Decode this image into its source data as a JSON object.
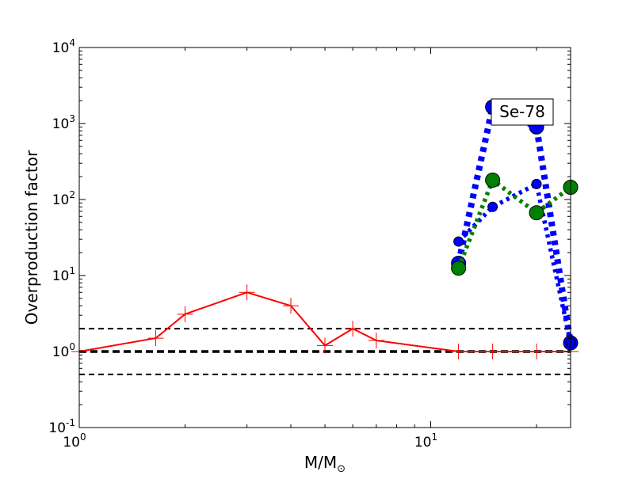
{
  "chart_data": {
    "type": "line",
    "xlabel": "M/M",
    "xlabel_sub": "⊙",
    "ylabel": "Overproduction factor",
    "annotation": "Se-78",
    "xscale": "log",
    "yscale": "log",
    "xlim": [
      1,
      25
    ],
    "ylim": [
      0.1,
      10000
    ],
    "x_ticks": [
      {
        "value": 1,
        "base": "10",
        "exp": "0"
      },
      {
        "value": 10,
        "base": "10",
        "exp": "1"
      }
    ],
    "y_ticks": [
      {
        "value": 0.1,
        "base": "10",
        "exp": "-1"
      },
      {
        "value": 1,
        "base": "10",
        "exp": "0"
      },
      {
        "value": 10,
        "base": "10",
        "exp": "1"
      },
      {
        "value": 100,
        "base": "10",
        "exp": "2"
      },
      {
        "value": 1000,
        "base": "10",
        "exp": "3"
      },
      {
        "value": 10000,
        "base": "10",
        "exp": "4"
      }
    ],
    "reference_lines": [
      {
        "y": 2,
        "color": "#000000",
        "style": "dashed",
        "weight": "thin"
      },
      {
        "y": 1,
        "color": "#000000",
        "style": "dashed",
        "weight": "thick"
      },
      {
        "y": 0.5,
        "color": "#000000",
        "style": "dashed",
        "weight": "thin"
      }
    ],
    "series": [
      {
        "color": "#ff0000",
        "style": "solid",
        "marker": "plus",
        "x": [
          1,
          1.65,
          2,
          3,
          4,
          5,
          6,
          7,
          12,
          15,
          20,
          25
        ],
        "y": [
          1.0,
          1.5,
          3.1,
          6.0,
          4.0,
          1.2,
          2.0,
          1.4,
          1.0,
          1.0,
          1.0,
          1.0
        ]
      },
      {
        "color": "#0000ff",
        "style": "dotted-thick",
        "marker": "large-circle",
        "x": [
          12,
          15,
          20,
          25
        ],
        "y": [
          14.5,
          1650,
          900,
          1.3
        ]
      },
      {
        "color": "#0000ff",
        "style": "dotted-medium",
        "marker": "small-circle",
        "x": [
          12,
          15,
          20,
          25
        ],
        "y": [
          28,
          80,
          160,
          1.3
        ]
      },
      {
        "color": "#008000",
        "style": "dotted-medium",
        "marker": "large-circle",
        "x": [
          12,
          15,
          20,
          25
        ],
        "y": [
          12.5,
          180,
          67,
          145
        ]
      }
    ]
  }
}
